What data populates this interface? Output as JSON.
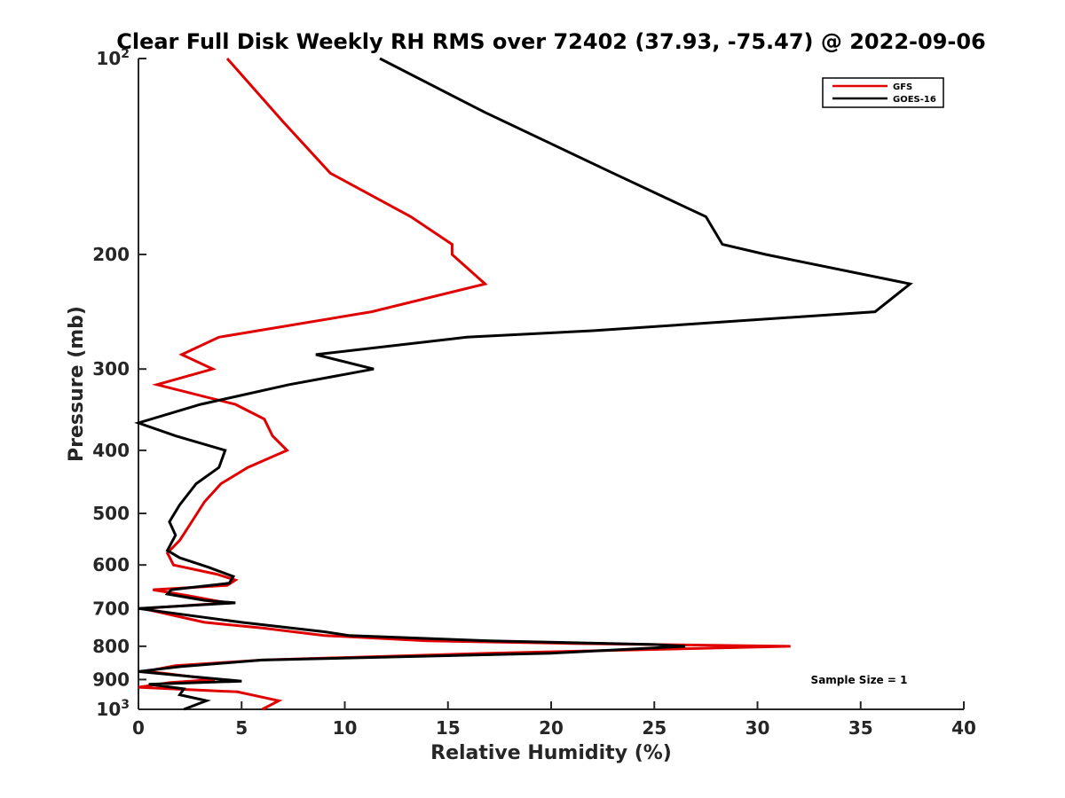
{
  "chart_data": {
    "type": "line",
    "title": "Clear Full Disk Weekly RH RMS over 72402 (37.93, -75.47) @ 2022-09-06",
    "xlabel": "Relative Humidity (%)",
    "ylabel": "Pressure (mb)",
    "xlim": [
      0,
      40
    ],
    "ylim": [
      100,
      1000
    ],
    "yscale": "log",
    "y_reversed": true,
    "x_ticks": [
      "0",
      "5",
      "10",
      "15",
      "20",
      "25",
      "30",
      "35",
      "40"
    ],
    "y_ticks": [
      {
        "value": 100,
        "label": "10",
        "exponent": "2"
      },
      {
        "value": 200,
        "label": "200",
        "exponent": ""
      },
      {
        "value": 300,
        "label": "300",
        "exponent": ""
      },
      {
        "value": 400,
        "label": "400",
        "exponent": ""
      },
      {
        "value": 500,
        "label": "500",
        "exponent": ""
      },
      {
        "value": 600,
        "label": "600",
        "exponent": ""
      },
      {
        "value": 700,
        "label": "700",
        "exponent": ""
      },
      {
        "value": 800,
        "label": "800",
        "exponent": ""
      },
      {
        "value": 900,
        "label": "900",
        "exponent": ""
      },
      {
        "value": 1000,
        "label": "10",
        "exponent": "3"
      }
    ],
    "legend_position": "top-right",
    "annotation": "Sample Size = 1",
    "series": [
      {
        "name": "GFS",
        "color": "#e00000",
        "points": [
          [
            4.3,
            100
          ],
          [
            7.0,
            125
          ],
          [
            9.3,
            150
          ],
          [
            13.2,
            175
          ],
          [
            15.2,
            193
          ],
          [
            15.2,
            200
          ],
          [
            16.8,
            222
          ],
          [
            11.3,
            245
          ],
          [
            3.9,
            268
          ],
          [
            2.1,
            285
          ],
          [
            3.6,
            300
          ],
          [
            0.9,
            317
          ],
          [
            4.7,
            340
          ],
          [
            6.1,
            358
          ],
          [
            6.5,
            380
          ],
          [
            7.2,
            400
          ],
          [
            5.3,
            425
          ],
          [
            4.0,
            450
          ],
          [
            3.2,
            480
          ],
          [
            2.5,
            520
          ],
          [
            2.0,
            550
          ],
          [
            1.4,
            575
          ],
          [
            1.7,
            600
          ],
          [
            3.8,
            620
          ],
          [
            4.7,
            633
          ],
          [
            4.3,
            645
          ],
          [
            0.7,
            655
          ],
          [
            2.3,
            668
          ],
          [
            4.3,
            686
          ],
          [
            0.2,
            700
          ],
          [
            3.2,
            735
          ],
          [
            6.0,
            750
          ],
          [
            9.0,
            770
          ],
          [
            14.0,
            785
          ],
          [
            21.0,
            792
          ],
          [
            31.6,
            800
          ],
          [
            17.0,
            820
          ],
          [
            6.0,
            840
          ],
          [
            1.8,
            857
          ],
          [
            0.3,
            875
          ],
          [
            1.2,
            880
          ],
          [
            3.7,
            900
          ],
          [
            1.5,
            910
          ],
          [
            0.0,
            925
          ],
          [
            4.8,
            940
          ],
          [
            6.8,
            970
          ],
          [
            6.0,
            1000
          ]
        ]
      },
      {
        "name": "GOES-16",
        "color": "#000000",
        "points": [
          [
            11.7,
            100
          ],
          [
            16.8,
            121
          ],
          [
            23.0,
            150
          ],
          [
            27.5,
            175
          ],
          [
            28.3,
            193
          ],
          [
            30.4,
            200
          ],
          [
            37.4,
            222
          ],
          [
            35.7,
            245
          ],
          [
            22.0,
            262
          ],
          [
            15.9,
            268
          ],
          [
            8.6,
            285
          ],
          [
            11.4,
            300
          ],
          [
            7.3,
            317
          ],
          [
            3.0,
            340
          ],
          [
            0.0,
            363
          ],
          [
            1.8,
            380
          ],
          [
            4.2,
            400
          ],
          [
            3.9,
            425
          ],
          [
            2.8,
            450
          ],
          [
            2.0,
            485
          ],
          [
            1.5,
            515
          ],
          [
            1.8,
            540
          ],
          [
            1.4,
            570
          ],
          [
            2.0,
            585
          ],
          [
            3.4,
            605
          ],
          [
            4.6,
            625
          ],
          [
            4.4,
            640
          ],
          [
            1.6,
            655
          ],
          [
            1.4,
            665
          ],
          [
            3.2,
            680
          ],
          [
            4.7,
            686
          ],
          [
            0.0,
            700
          ],
          [
            5.0,
            735
          ],
          [
            9.0,
            760
          ],
          [
            10.2,
            770
          ],
          [
            17.0,
            785
          ],
          [
            25.0,
            795
          ],
          [
            26.5,
            800
          ],
          [
            20.0,
            820
          ],
          [
            6.0,
            840
          ],
          [
            2.0,
            860
          ],
          [
            0.0,
            875
          ],
          [
            2.5,
            890
          ],
          [
            5.0,
            905
          ],
          [
            0.5,
            915
          ],
          [
            2.2,
            930
          ],
          [
            2.0,
            950
          ],
          [
            3.3,
            970
          ],
          [
            2.2,
            1000
          ]
        ]
      }
    ]
  }
}
